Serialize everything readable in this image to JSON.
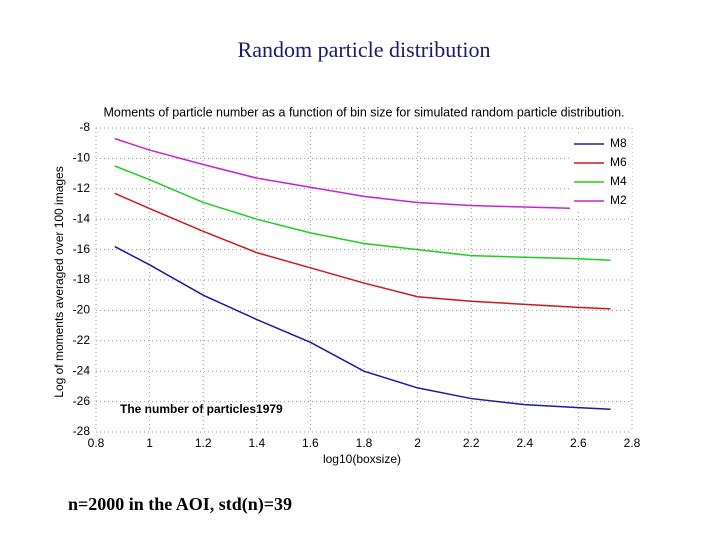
{
  "page_title": "Random particle distribution",
  "footer": "n=2000 in the AOI, std(n)=39",
  "chart_data": {
    "type": "line",
    "title": "Moments of particle number as a function of bin size for simulated random particle distribution.",
    "xlabel": "log10(boxsize)",
    "ylabel": "Log of moments averaged over 100 images",
    "annotation": "The number of particles1979",
    "x": [
      0.87,
      1.0,
      1.2,
      1.4,
      1.6,
      1.8,
      2.0,
      2.2,
      2.4,
      2.6,
      2.72
    ],
    "series": [
      {
        "name": "M8",
        "color": "#1a1aa6",
        "values": [
          -15.8,
          -17.0,
          -19.0,
          -20.6,
          -22.1,
          -24.0,
          -25.1,
          -25.8,
          -26.2,
          -26.4,
          -26.5
        ]
      },
      {
        "name": "M6",
        "color": "#cc1a1a",
        "values": [
          -12.3,
          -13.3,
          -14.8,
          -16.2,
          -17.2,
          -18.2,
          -19.1,
          -19.4,
          -19.6,
          -19.8,
          -19.9
        ]
      },
      {
        "name": "M4",
        "color": "#22cc22",
        "values": [
          -10.5,
          -11.4,
          -12.9,
          -14.0,
          -14.9,
          -15.6,
          -16.0,
          -16.4,
          -16.5,
          -16.6,
          -16.7
        ]
      },
      {
        "name": "M2",
        "color": "#cc22cc",
        "values": [
          -8.7,
          -9.45,
          -10.4,
          -11.3,
          -11.9,
          -12.5,
          -12.9,
          -13.1,
          -13.2,
          -13.3,
          -13.3
        ]
      }
    ],
    "xlim": [
      0.8,
      2.8
    ],
    "xticks": [
      0.8,
      1,
      1.2,
      1.4,
      1.6,
      1.8,
      2,
      2.2,
      2.4,
      2.6,
      2.8
    ],
    "ylim": [
      -28,
      -8
    ],
    "yticks": [
      -8,
      -10,
      -12,
      -14,
      -16,
      -18,
      -20,
      -22,
      -24,
      -26,
      -28
    ],
    "grid": true,
    "legend": "upper right"
  }
}
